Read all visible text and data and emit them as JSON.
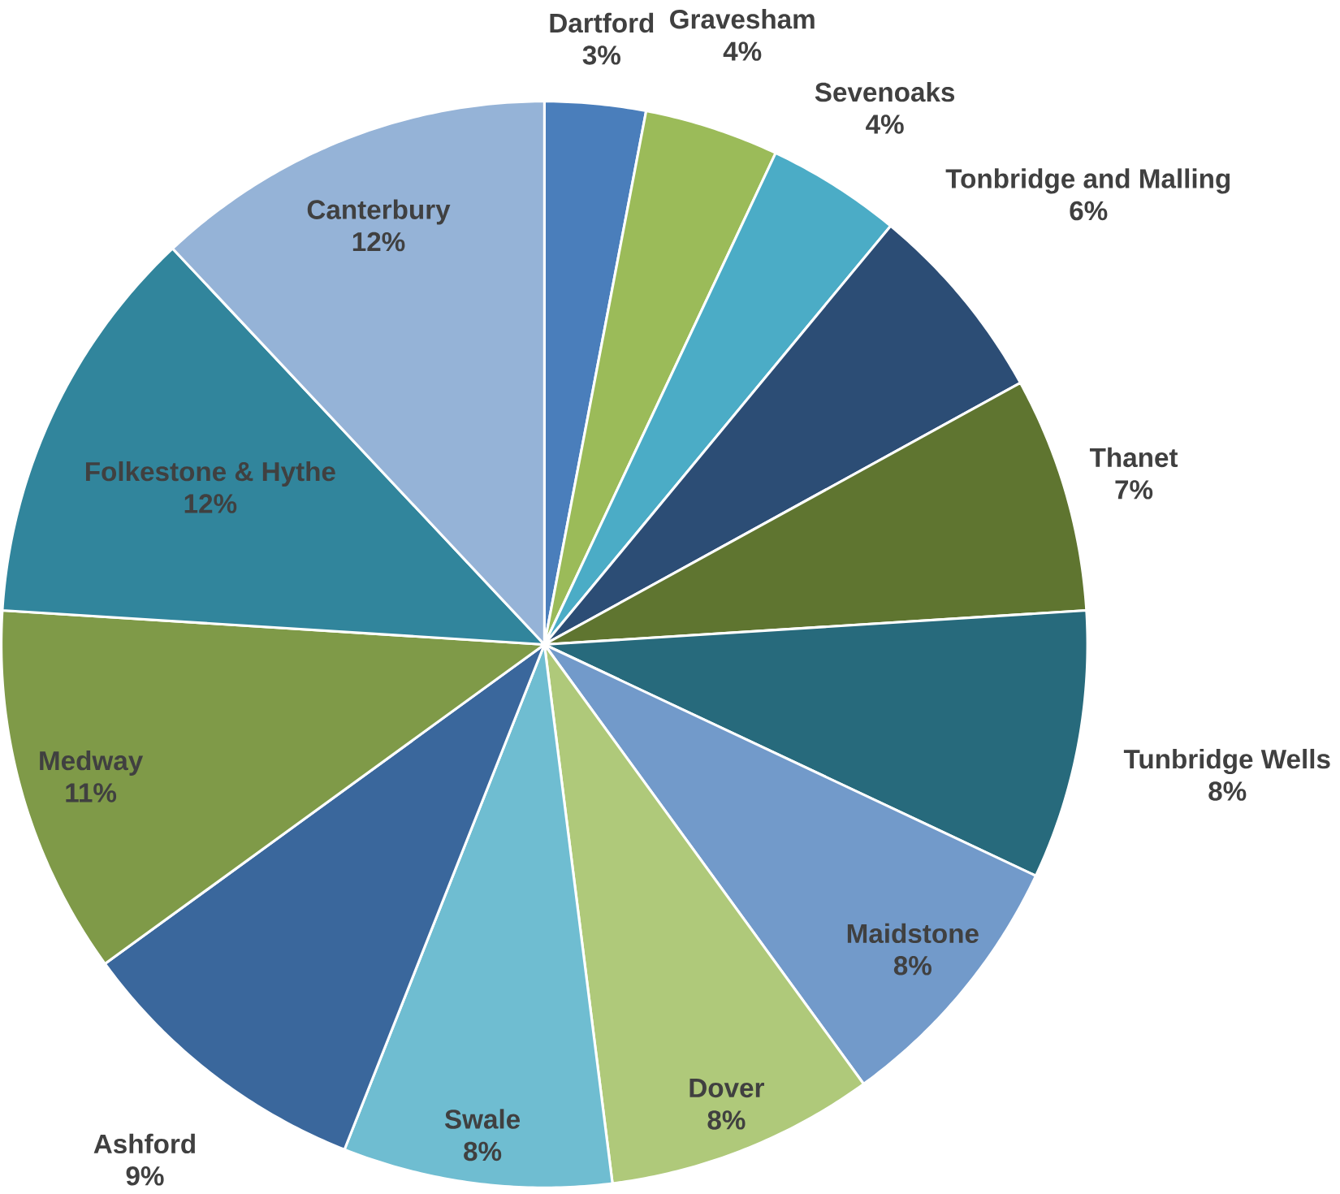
{
  "chart_data": {
    "type": "pie",
    "categories": [
      "Dartford",
      "Gravesham",
      "Sevenoaks",
      "Tonbridge and Malling",
      "Thanet",
      "Tunbridge Wells",
      "Maidstone",
      "Dover",
      "Swale",
      "Ashford",
      "Medway",
      "Folkestone & Hythe",
      "Canterbury"
    ],
    "values": [
      3,
      4,
      4,
      6,
      7,
      8,
      8,
      8,
      8,
      9,
      11,
      12,
      12
    ],
    "value_labels": [
      "3%",
      "4%",
      "4%",
      "6%",
      "7%",
      "8%",
      "8%",
      "8%",
      "8%",
      "9%",
      "11%",
      "12%",
      "12%"
    ],
    "colors": [
      "#4a7ebb",
      "#9bbb59",
      "#4bacc6",
      "#2c4d75",
      "#5f7530",
      "#276a7c",
      "#729aca",
      "#afc97a",
      "#6fbdd1",
      "#3a679c",
      "#7f9a48",
      "#31859c",
      "#95b3d7"
    ]
  }
}
